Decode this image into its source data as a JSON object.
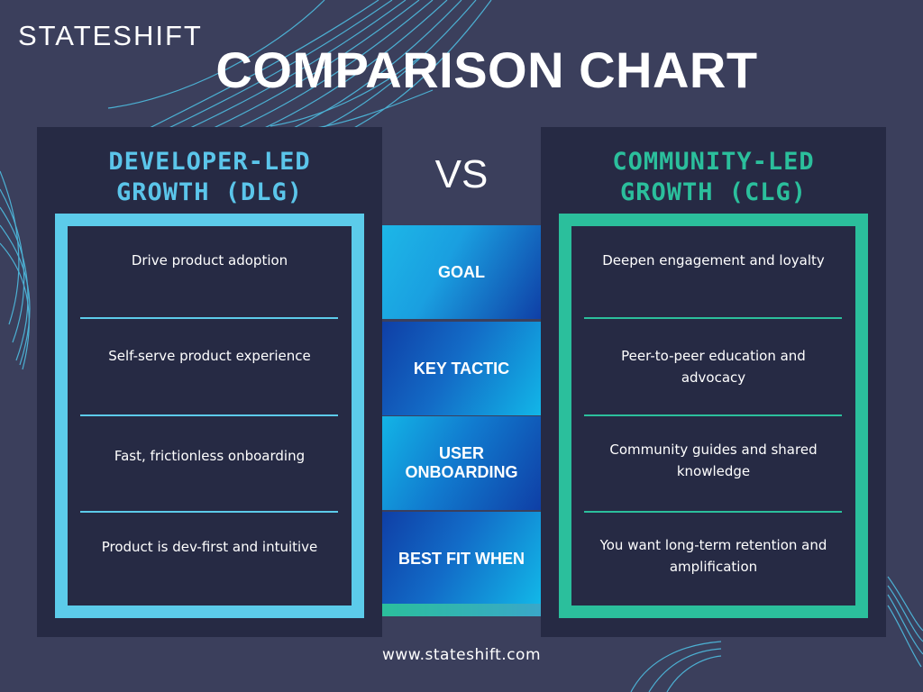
{
  "brand": {
    "logo_text": "STATESHIFT",
    "url": "www.stateshift.com"
  },
  "title": "COMPARISON CHART",
  "vs": "VS",
  "colors": {
    "background": "#3b3f5c",
    "panel": "#262a44",
    "dlg_accent": "#5ccbea",
    "clg_accent": "#2bbf9c",
    "bar_gradient_start": "#0f3fa6",
    "bar_gradient_end": "#0fb6e6"
  },
  "left": {
    "title_line1": "DEVELOPER-LED",
    "title_line2": "GROWTH (DLG)",
    "rows": [
      "Drive product adoption",
      "Self-serve product experience",
      "Fast, frictionless onboarding",
      "Product is dev-first and intuitive"
    ]
  },
  "right": {
    "title_line1": "COMMUNITY-LED",
    "title_line2": "GROWTH (CLG)",
    "rows": [
      "Deepen engagement and loyalty",
      "Peer-to-peer education and advocacy",
      "Community guides and shared knowledge",
      "You want long-term retention and amplification"
    ]
  },
  "categories": [
    "GOAL",
    "KEY TACTIC",
    "USER ONBOARDING",
    "BEST FIT WHEN"
  ]
}
